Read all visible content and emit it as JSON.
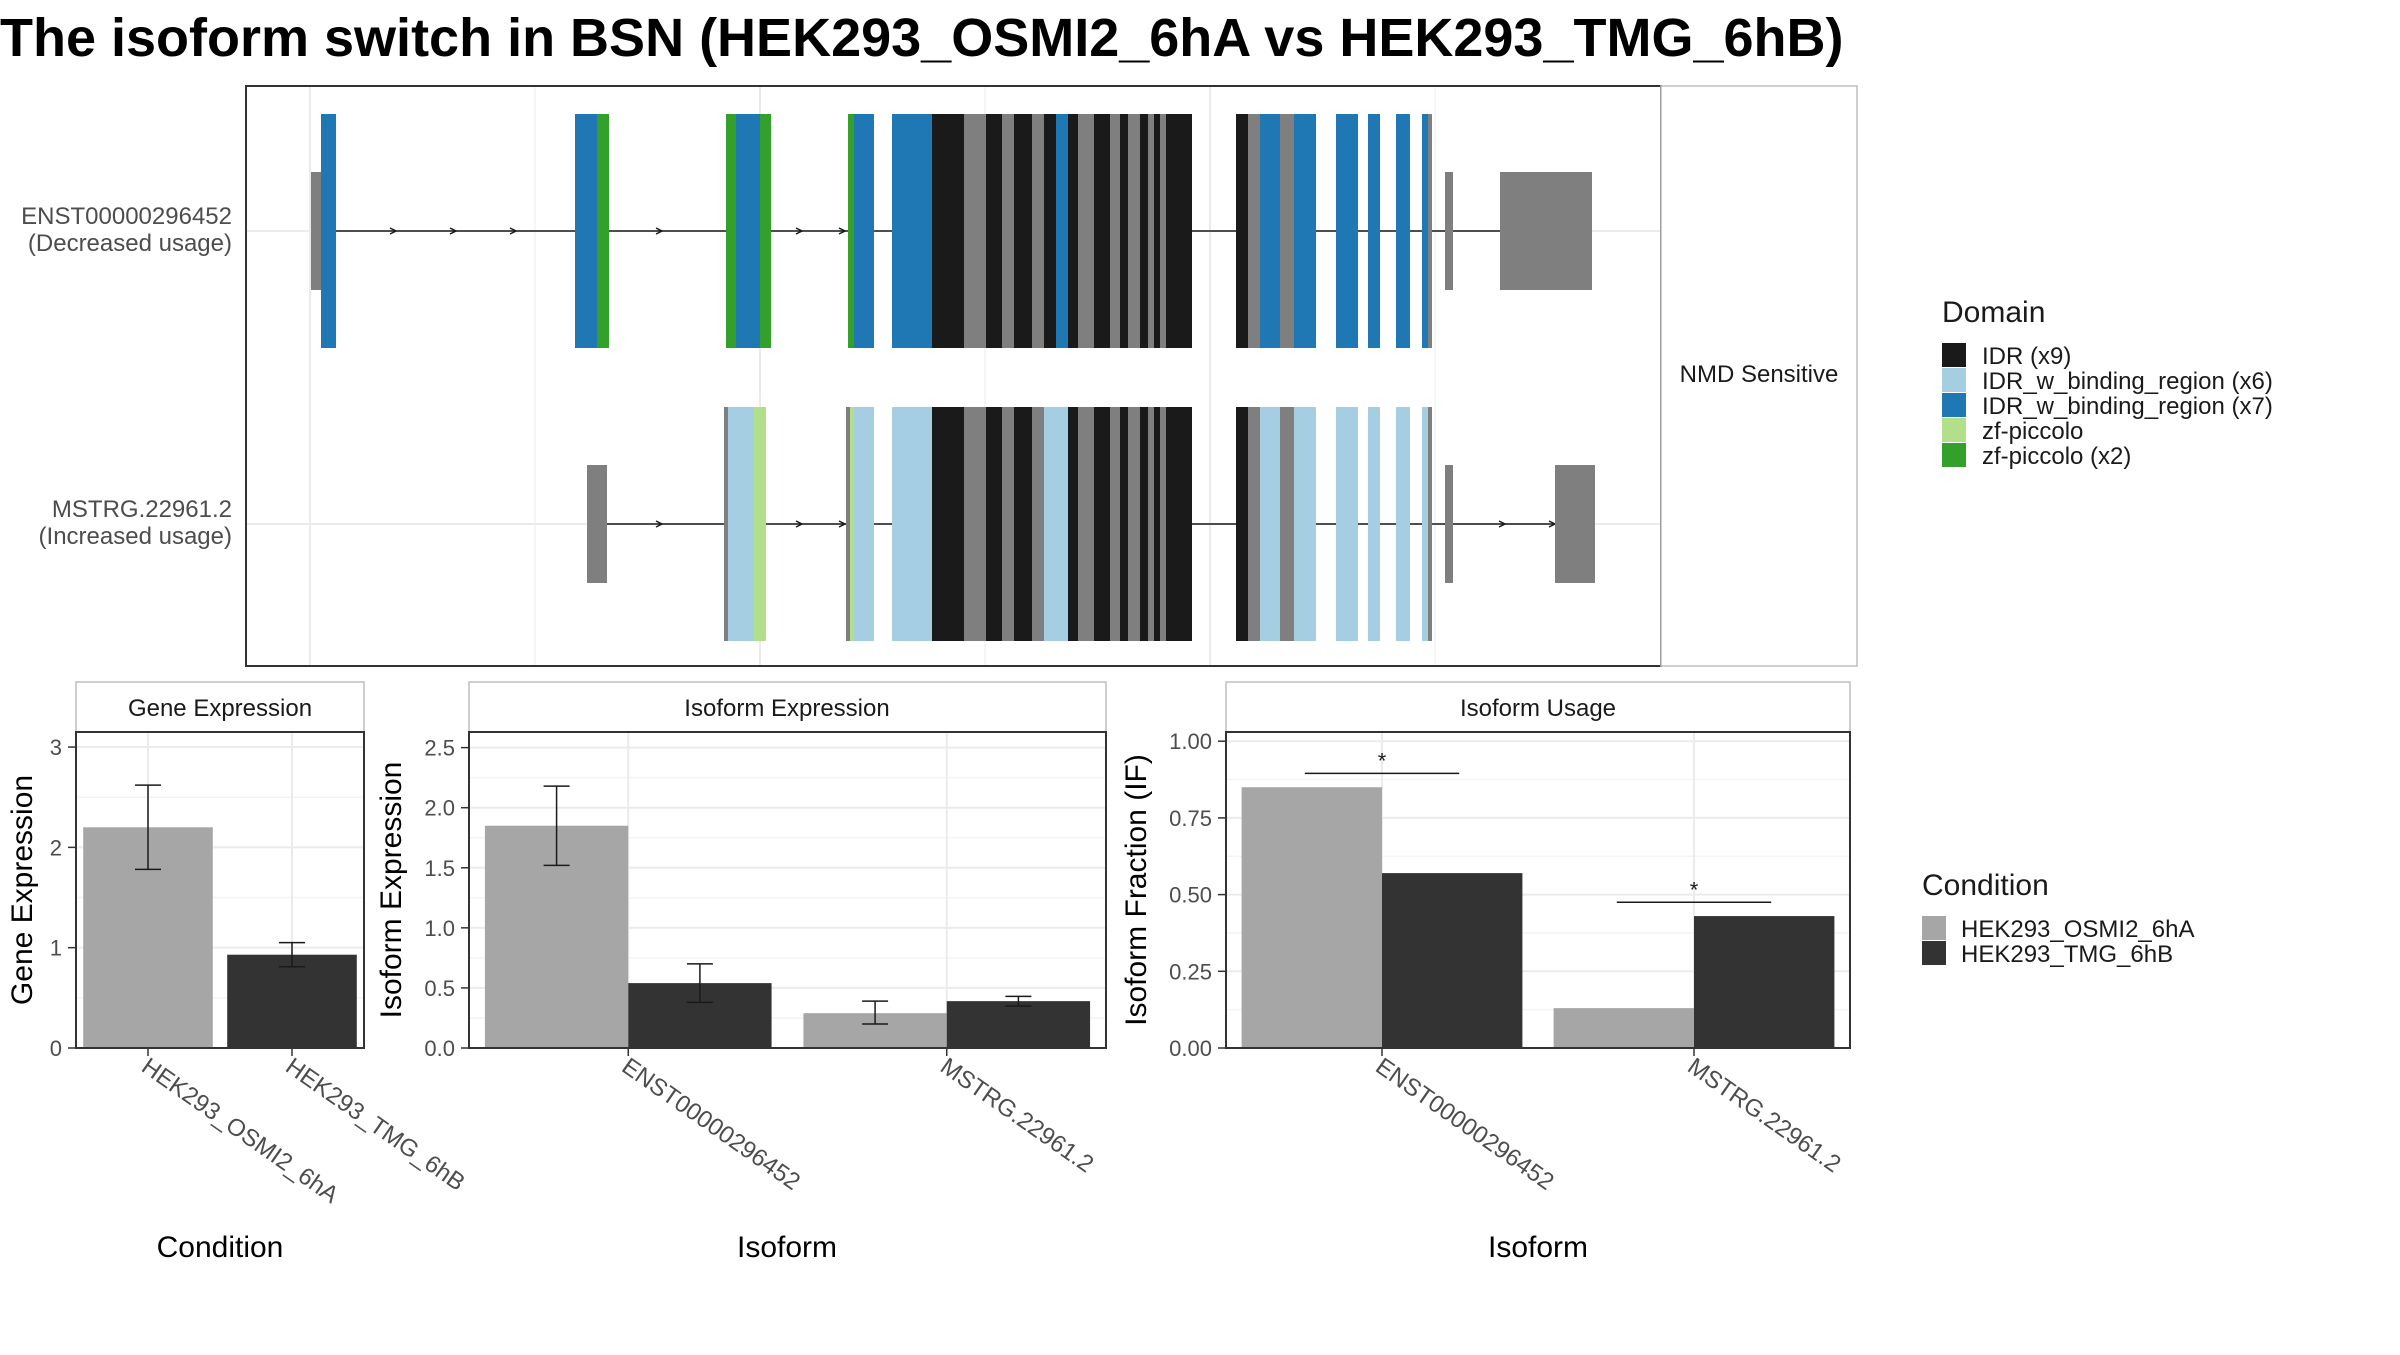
{
  "chart_data": [
    {
      "type": "gene_structure",
      "title": "The isoform switch in BSN (HEK293_OSMI2_6hA vs HEK293_TMG_6hB)",
      "facet_label": "NMD Sensitive",
      "transcripts": [
        {
          "label": "ENST00000296452",
          "sublabel": "(Decreased usage)"
        },
        {
          "label": "MSTRG.22961.2",
          "sublabel": "(Increased usage)"
        }
      ],
      "legend_title": "Domain",
      "legend": [
        {
          "label": "IDR (x9)",
          "color": "#1a1a1a"
        },
        {
          "label": "IDR_w_binding_region (x6)",
          "color": "#a6cee3"
        },
        {
          "label": "IDR_w_binding_region (x7)",
          "color": "#1f78b4"
        },
        {
          "label": "zf-piccolo",
          "color": "#b2df8a"
        },
        {
          "label": "zf-piccolo (x2)",
          "color": "#33a02c"
        }
      ],
      "other_colors": {
        "utr": "#7f7f7f",
        "unannotated_cds": "#7f7f7f"
      }
    },
    {
      "type": "bar",
      "panel_title": "Gene Expression",
      "xlabel": "Condition",
      "ylabel": "Gene Expression",
      "categories": [
        "HEK293_OSMI2_6hA",
        "HEK293_TMG_6hB"
      ],
      "values": [
        2.2,
        0.93
      ],
      "error_low": [
        1.78,
        0.81
      ],
      "error_high": [
        2.62,
        1.05
      ],
      "colors": [
        "#a6a6a6",
        "#333333"
      ],
      "ylim": [
        0,
        3.15
      ],
      "yticks": [
        "0",
        "1",
        "2",
        "3"
      ]
    },
    {
      "type": "bar",
      "panel_title": "Isoform Expression",
      "xlabel": "Isoform",
      "ylabel": "Isoform Expression",
      "categories": [
        "ENST00000296452",
        "MSTRG.22961.2"
      ],
      "series": [
        {
          "name": "HEK293_OSMI2_6hA",
          "values": [
            1.85,
            0.29
          ],
          "error_low": [
            1.52,
            0.2
          ],
          "error_high": [
            2.18,
            0.39
          ]
        },
        {
          "name": "HEK293_TMG_6hB",
          "values": [
            0.54,
            0.39
          ],
          "error_low": [
            0.38,
            0.35
          ],
          "error_high": [
            0.7,
            0.43
          ]
        }
      ],
      "ylim": [
        0,
        2.63
      ],
      "yticks": [
        "0.0",
        "0.5",
        "1.0",
        "1.5",
        "2.0",
        "2.5"
      ]
    },
    {
      "type": "bar",
      "panel_title": "Isoform Usage",
      "xlabel": "Isoform",
      "ylabel": "Isoform Fraction (IF)",
      "categories": [
        "ENST00000296452",
        "MSTRG.22961.2"
      ],
      "series": [
        {
          "name": "HEK293_OSMI2_6hA",
          "values": [
            0.85,
            0.13
          ]
        },
        {
          "name": "HEK293_TMG_6hB",
          "values": [
            0.57,
            0.43
          ]
        }
      ],
      "significance": [
        "*",
        "*"
      ],
      "ylim": [
        0,
        1.03
      ],
      "yticks": [
        "0.00",
        "0.25",
        "0.50",
        "0.75",
        "1.00"
      ]
    }
  ],
  "condition_legend": {
    "title": "Condition",
    "items": [
      {
        "label": "HEK293_OSMI2_6hA",
        "color": "#a6a6a6"
      },
      {
        "label": "HEK293_TMG_6hB",
        "color": "#333333"
      }
    ]
  }
}
